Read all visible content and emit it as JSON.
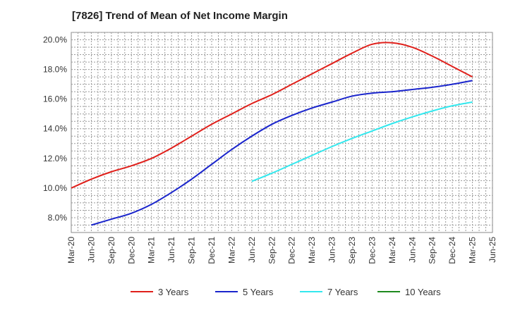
{
  "chart_data": {
    "type": "line",
    "title": "[7826]  Trend of Mean of Net Income Margin",
    "xlabel": "",
    "ylabel": "",
    "categories": [
      "Mar-20",
      "Jun-20",
      "Sep-20",
      "Dec-20",
      "Mar-21",
      "Jun-21",
      "Sep-21",
      "Dec-21",
      "Mar-22",
      "Jun-22",
      "Sep-22",
      "Dec-22",
      "Mar-23",
      "Jun-23",
      "Sep-23",
      "Dec-23",
      "Mar-24",
      "Jun-24",
      "Sep-24",
      "Dec-24",
      "Mar-25",
      "Jun-25"
    ],
    "y_ticks": [
      "8.0%",
      "10.0%",
      "12.0%",
      "14.0%",
      "16.0%",
      "18.0%",
      "20.0%"
    ],
    "ylim": [
      7.0,
      20.5
    ],
    "grid": true,
    "legend_position": "bottom",
    "series": [
      {
        "name": "3 Years",
        "color": "#e0201b",
        "values": [
          10.0,
          10.6,
          11.1,
          11.5,
          12.0,
          12.7,
          13.5,
          14.3,
          15.0,
          15.7,
          16.3,
          17.0,
          17.7,
          18.4,
          19.1,
          19.7,
          19.8,
          19.5,
          18.9,
          18.2,
          17.5,
          null
        ]
      },
      {
        "name": "5 Years",
        "color": "#1a25cc",
        "values": [
          null,
          7.5,
          7.9,
          8.3,
          8.9,
          9.7,
          10.6,
          11.6,
          12.6,
          13.5,
          14.3,
          14.9,
          15.4,
          15.8,
          16.2,
          16.4,
          16.5,
          16.65,
          16.8,
          17.0,
          17.25,
          null
        ]
      },
      {
        "name": "7 Years",
        "color": "#33e8ee",
        "values": [
          null,
          null,
          null,
          null,
          null,
          null,
          null,
          null,
          null,
          10.45,
          11.0,
          11.6,
          12.2,
          12.8,
          13.35,
          13.85,
          14.35,
          14.8,
          15.2,
          15.55,
          15.8,
          null
        ]
      },
      {
        "name": "10 Years",
        "color": "#1e8a1e",
        "values": [
          null,
          null,
          null,
          null,
          null,
          null,
          null,
          null,
          null,
          null,
          null,
          null,
          null,
          null,
          null,
          null,
          null,
          null,
          null,
          null,
          null,
          null
        ]
      }
    ]
  }
}
